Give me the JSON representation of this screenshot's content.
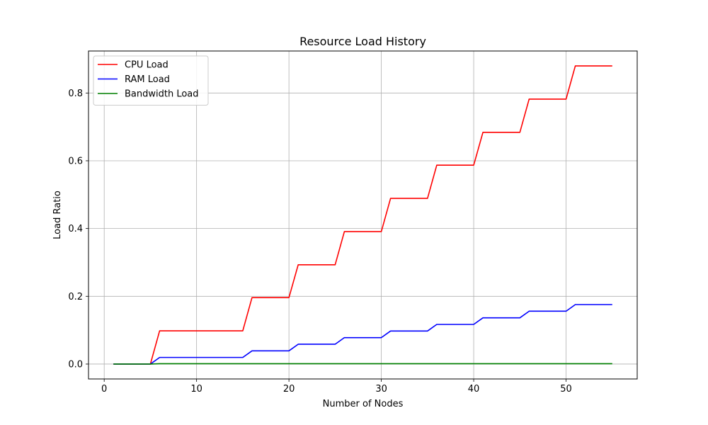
{
  "chart_data": {
    "type": "line",
    "title": "Resource Load History",
    "xlabel": "Number of Nodes",
    "ylabel": "Load Ratio",
    "xlim": [
      -1.7,
      57.7
    ],
    "ylim": [
      -0.044,
      0.924
    ],
    "xticks": [
      0,
      10,
      20,
      30,
      40,
      50
    ],
    "xtick_labels": [
      "0",
      "10",
      "20",
      "30",
      "40",
      "50"
    ],
    "yticks": [
      0.0,
      0.2,
      0.4,
      0.6,
      0.8
    ],
    "ytick_labels": [
      "0.0",
      "0.2",
      "0.4",
      "0.6",
      "0.8"
    ],
    "grid": true,
    "legend_position": "top-left",
    "series": [
      {
        "name": "CPU Load",
        "color": "#ff0000",
        "x": [
          1,
          5,
          6,
          15,
          16,
          20,
          21,
          25,
          26,
          30,
          31,
          35,
          36,
          40,
          41,
          45,
          46,
          50,
          51,
          55
        ],
        "y": [
          0.0,
          0.0,
          0.098,
          0.098,
          0.196,
          0.196,
          0.293,
          0.293,
          0.391,
          0.391,
          0.489,
          0.489,
          0.587,
          0.587,
          0.684,
          0.684,
          0.782,
          0.782,
          0.88,
          0.88
        ]
      },
      {
        "name": "RAM Load",
        "color": "#0000ff",
        "x": [
          1,
          5,
          6,
          15,
          16,
          20,
          21,
          25,
          26,
          30,
          31,
          35,
          36,
          40,
          41,
          45,
          46,
          50,
          51,
          55
        ],
        "y": [
          0.0,
          0.0,
          0.0195,
          0.0195,
          0.039,
          0.039,
          0.0585,
          0.0585,
          0.078,
          0.078,
          0.0975,
          0.0975,
          0.117,
          0.117,
          0.1365,
          0.1365,
          0.156,
          0.156,
          0.1755,
          0.1755
        ]
      },
      {
        "name": "Bandwidth Load",
        "color": "#008000",
        "x": [
          1,
          5,
          6,
          55
        ],
        "y": [
          0.0,
          0.0,
          0.001,
          0.001
        ]
      }
    ]
  }
}
